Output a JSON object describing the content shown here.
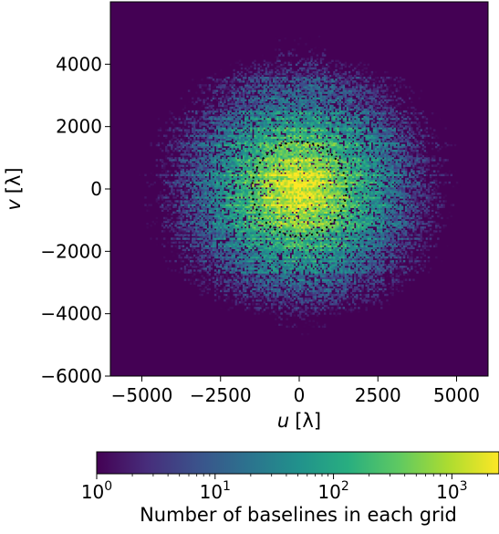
{
  "chart_data": {
    "type": "heatmap",
    "title": "",
    "xlabel": {
      "symbol": "u",
      "unit": "[λ]"
    },
    "ylabel": {
      "symbol": "v",
      "unit": "[λ]"
    },
    "xlim": [
      -6000,
      6000
    ],
    "ylim": [
      -6000,
      6000
    ],
    "x_ticks": [
      {
        "value": -5000,
        "label": "−5000"
      },
      {
        "value": -2500,
        "label": "−2500"
      },
      {
        "value": 0,
        "label": "0"
      },
      {
        "value": 2500,
        "label": "2500"
      },
      {
        "value": 5000,
        "label": "5000"
      }
    ],
    "y_ticks": [
      {
        "value": 4000,
        "label": "4000"
      },
      {
        "value": 2000,
        "label": "2000"
      },
      {
        "value": 0,
        "label": "0"
      },
      {
        "value": -2000,
        "label": "−2000"
      },
      {
        "value": -4000,
        "label": "−4000"
      },
      {
        "value": -6000,
        "label": "−6000"
      }
    ],
    "colormap": "viridis",
    "color_scale": "log",
    "color_range": [
      1,
      2500
    ],
    "colorbar": {
      "label": "Number of baselines in each grid",
      "location": "bottom",
      "ticks": [
        {
          "value": 1,
          "base": "10",
          "exp": "0"
        },
        {
          "value": 10,
          "base": "10",
          "exp": "1"
        },
        {
          "value": 100,
          "base": "10",
          "exp": "2"
        },
        {
          "value": 1000,
          "base": "10",
          "exp": "3"
        }
      ]
    },
    "annotation": {
      "shape": "dotted circle",
      "center": [
        0,
        0
      ],
      "radius": 1500,
      "color": "#000000"
    },
    "structure": {
      "peak_count": 2500,
      "core_radius": 1500,
      "pattern": "dense core of baselines around the origin with horizontal streaks spreading to the edges; sparse regions near v ≈ ±4500"
    },
    "grid": false,
    "legend": "none"
  }
}
